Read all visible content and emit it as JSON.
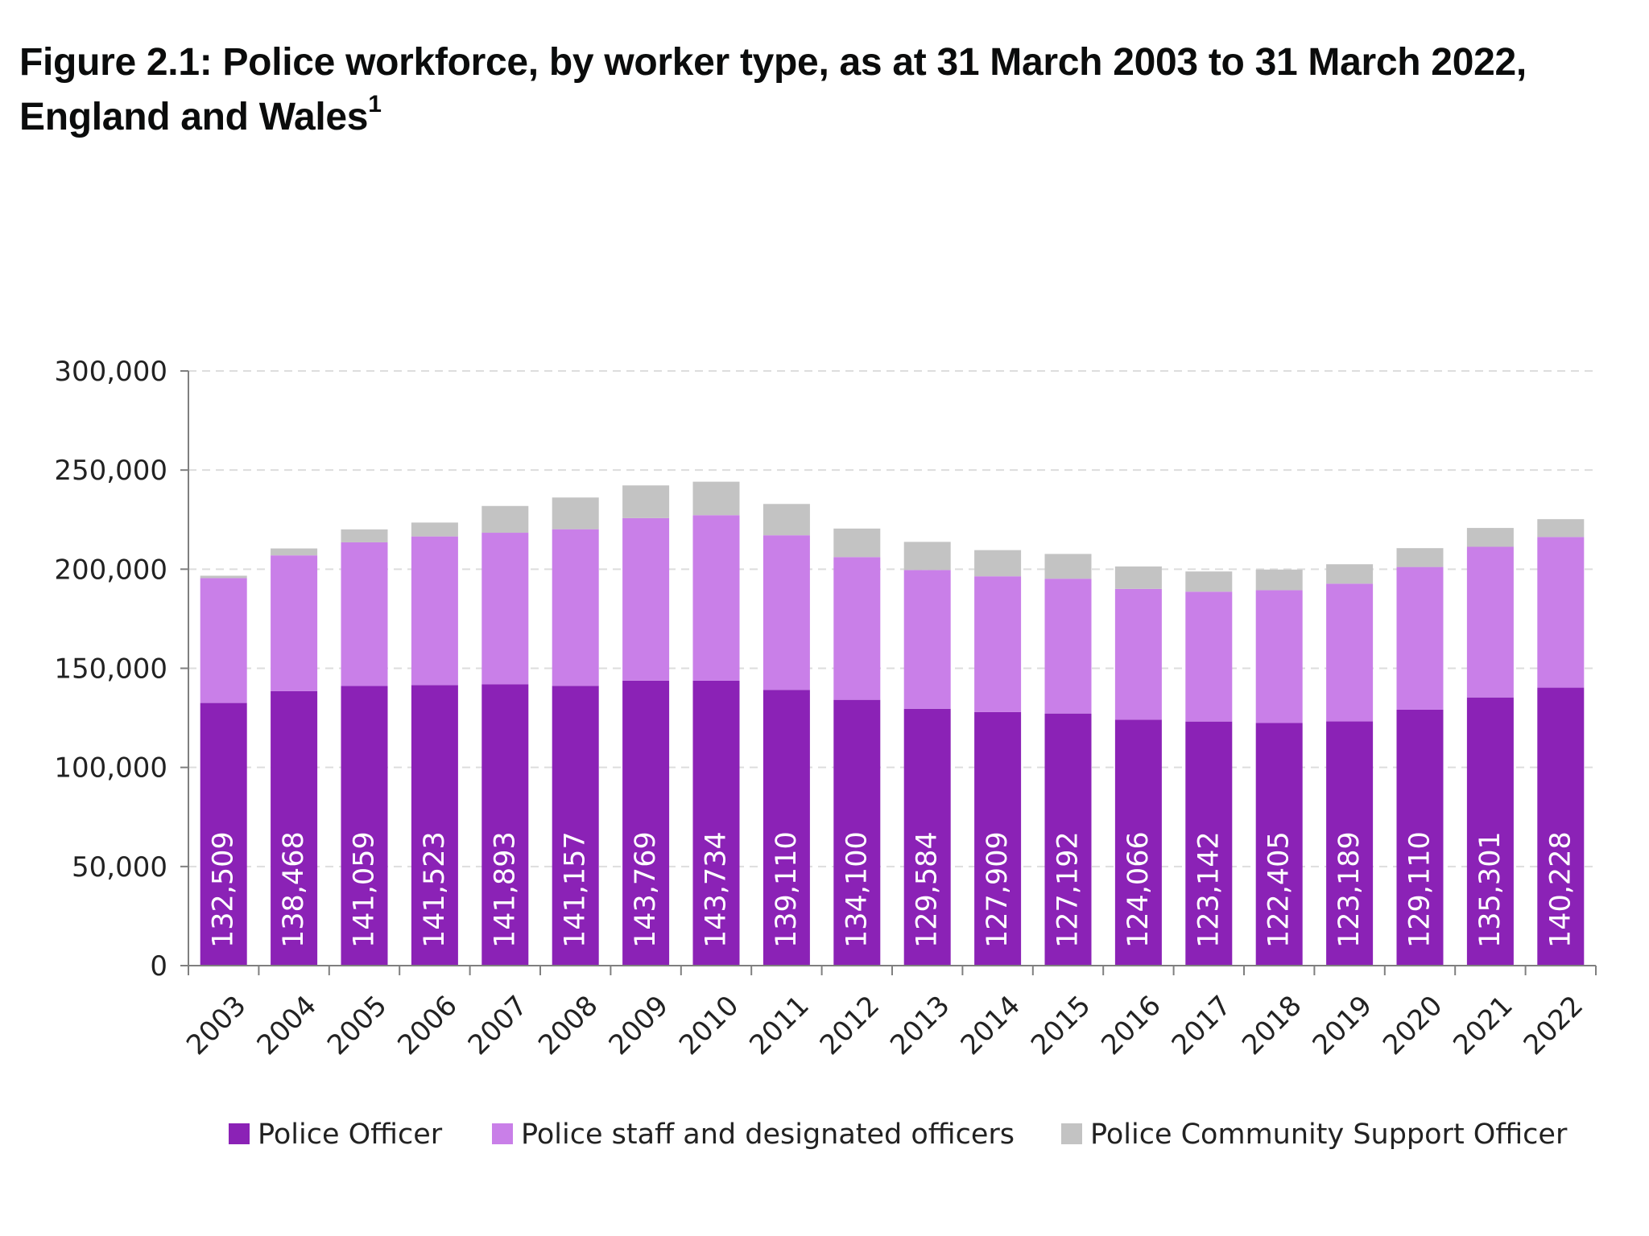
{
  "title": {
    "text": "Figure 2.1: Police workforce, by worker type, as at 31 March 2003 to 31 March 2022, England and Wales",
    "footnote": "1"
  },
  "chart_data": {
    "type": "bar",
    "stacked": true,
    "title": "Figure 2.1: Police workforce, by worker type, as at 31 March 2003 to 31 March 2022, England and Wales",
    "xlabel": "",
    "ylabel": "",
    "ylim": [
      0,
      300000
    ],
    "yticks": [
      0,
      50000,
      100000,
      150000,
      200000,
      250000,
      300000
    ],
    "ytick_labels": [
      "0",
      "50,000",
      "100,000",
      "150,000",
      "200,000",
      "250,000",
      "300,000"
    ],
    "grid": true,
    "legend_position": "bottom",
    "categories": [
      "2003",
      "2004",
      "2005",
      "2006",
      "2007",
      "2008",
      "2009",
      "2010",
      "2011",
      "2012",
      "2013",
      "2014",
      "2015",
      "2016",
      "2017",
      "2018",
      "2019",
      "2020",
      "2021",
      "2022"
    ],
    "series": [
      {
        "name": "Police Officer",
        "color": "#8b22b6",
        "values": [
          132509,
          138468,
          141059,
          141523,
          141893,
          141157,
          143769,
          143734,
          139110,
          134100,
          129584,
          127909,
          127192,
          124066,
          123142,
          122405,
          123189,
          129110,
          135301,
          140228
        ],
        "data_labels": [
          "132,509",
          "138,468",
          "141,059",
          "141,523",
          "141,893",
          "141,157",
          "143,769",
          "143,734",
          "139,110",
          "134,100",
          "129,584",
          "127,909",
          "127,192",
          "124,066",
          "123,142",
          "122,405",
          "123,189",
          "129,110",
          "135,301",
          "140,228"
        ]
      },
      {
        "name": "Police staff and designated officers",
        "color": "#c97fe8",
        "values": [
          63000,
          68500,
          72500,
          75000,
          76500,
          79000,
          82000,
          83500,
          78000,
          72000,
          70000,
          68500,
          68000,
          66000,
          65500,
          67000,
          69500,
          72000,
          76000,
          76000
        ]
      },
      {
        "name": "Police Community Support Officer",
        "color": "#c3c3c3",
        "values": [
          1200,
          3500,
          6500,
          7000,
          13500,
          16000,
          16500,
          16900,
          15800,
          14400,
          14200,
          13200,
          12500,
          11300,
          10200,
          10400,
          9800,
          9500,
          9500,
          9000
        ]
      }
    ]
  }
}
